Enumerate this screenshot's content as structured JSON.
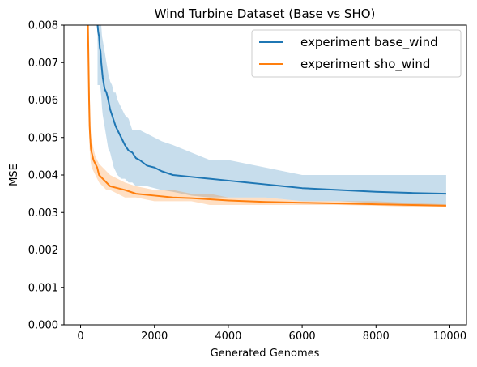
{
  "chart_data": {
    "type": "line",
    "title": "Wind Turbine Dataset (Base vs SHO)",
    "xlabel": "Generated Genomes",
    "ylabel": "MSE",
    "xlim": [
      -450,
      10450
    ],
    "ylim": [
      0,
      0.008
    ],
    "xticks": [
      0,
      2000,
      4000,
      6000,
      8000,
      10000
    ],
    "yticks": [
      0.0,
      0.001,
      0.002,
      0.003,
      0.004,
      0.005,
      0.006,
      0.007,
      0.008
    ],
    "ytick_labels": [
      "0.000",
      "0.001",
      "0.002",
      "0.003",
      "0.004",
      "0.005",
      "0.006",
      "0.007",
      "0.008"
    ],
    "grid": false,
    "legend_position": "top-right",
    "series": [
      {
        "name": "experiment base_wind",
        "color": "#1f77b4",
        "x": [
          460,
          480,
          500,
          520,
          540,
          560,
          580,
          600,
          650,
          700,
          750,
          800,
          850,
          900,
          950,
          1000,
          1100,
          1200,
          1300,
          1400,
          1500,
          1600,
          1800,
          2000,
          2200,
          2500,
          3000,
          3500,
          4000,
          4500,
          5000,
          5500,
          6000,
          7000,
          8000,
          9000,
          9900
        ],
        "y": [
          0.008,
          0.0078,
          0.0077,
          0.0074,
          0.0073,
          0.007,
          0.0068,
          0.0066,
          0.0063,
          0.0062,
          0.006,
          0.00575,
          0.0056,
          0.00545,
          0.0053,
          0.0052,
          0.005,
          0.0048,
          0.00465,
          0.0046,
          0.00445,
          0.0044,
          0.00425,
          0.0042,
          0.0041,
          0.004,
          0.00395,
          0.0039,
          0.00385,
          0.0038,
          0.00375,
          0.0037,
          0.00365,
          0.0036,
          0.00355,
          0.00352,
          0.0035
        ],
        "upper": [
          0.008,
          0.008,
          0.008,
          0.008,
          0.008,
          0.008,
          0.0077,
          0.0076,
          0.0073,
          0.007,
          0.0067,
          0.0065,
          0.0064,
          0.0062,
          0.0062,
          0.006,
          0.0058,
          0.0056,
          0.0055,
          0.0052,
          0.0052,
          0.0052,
          0.0051,
          0.005,
          0.0049,
          0.0048,
          0.0046,
          0.0044,
          0.0044,
          0.0043,
          0.0042,
          0.0041,
          0.004,
          0.004,
          0.004,
          0.004,
          0.004
        ],
        "lower": [
          0.0064,
          0.0064,
          0.0064,
          0.0064,
          0.0063,
          0.0061,
          0.0058,
          0.0056,
          0.0053,
          0.005,
          0.0047,
          0.0046,
          0.0044,
          0.0042,
          0.0041,
          0.004,
          0.0039,
          0.0039,
          0.0038,
          0.0038,
          0.0037,
          0.0037,
          0.0037,
          0.00365,
          0.0036,
          0.00355,
          0.00345,
          0.0034,
          0.0034,
          0.0034,
          0.0034,
          0.00335,
          0.0033,
          0.0033,
          0.00325,
          0.0032,
          0.0032
        ]
      },
      {
        "name": "experiment sho_wind",
        "color": "#ff7f0e",
        "x": [
          200,
          215,
          230,
          245,
          260,
          280,
          300,
          350,
          400,
          450,
          500,
          600,
          700,
          800,
          1000,
          1200,
          1500,
          2000,
          2500,
          3000,
          3500,
          4000,
          4500,
          5000,
          6000,
          7000,
          8000,
          9000,
          9900
        ],
        "y": [
          0.008,
          0.007,
          0.006,
          0.0053,
          0.005,
          0.0047,
          0.0046,
          0.0044,
          0.0043,
          0.0042,
          0.004,
          0.0039,
          0.0038,
          0.0037,
          0.00365,
          0.0036,
          0.0035,
          0.00345,
          0.0034,
          0.00338,
          0.00335,
          0.00332,
          0.0033,
          0.00328,
          0.00326,
          0.00324,
          0.00322,
          0.0032,
          0.00318
        ],
        "upper": [
          0.008,
          0.0076,
          0.007,
          0.0062,
          0.0057,
          0.0051,
          0.0049,
          0.0047,
          0.0045,
          0.0044,
          0.0043,
          0.0042,
          0.0041,
          0.004,
          0.0039,
          0.0038,
          0.0037,
          0.0036,
          0.0036,
          0.0035,
          0.0035,
          0.0034,
          0.0034,
          0.0034,
          0.0033,
          0.0033,
          0.0033,
          0.00325,
          0.00322
        ],
        "lower": [
          0.008,
          0.0065,
          0.0054,
          0.0047,
          0.0045,
          0.0043,
          0.0042,
          0.0041,
          0.004,
          0.0039,
          0.0038,
          0.0037,
          0.0036,
          0.0036,
          0.0035,
          0.0034,
          0.0034,
          0.0033,
          0.0033,
          0.0033,
          0.0032,
          0.0032,
          0.0032,
          0.0032,
          0.0032,
          0.0032,
          0.00318,
          0.00315,
          0.00315
        ]
      }
    ]
  }
}
